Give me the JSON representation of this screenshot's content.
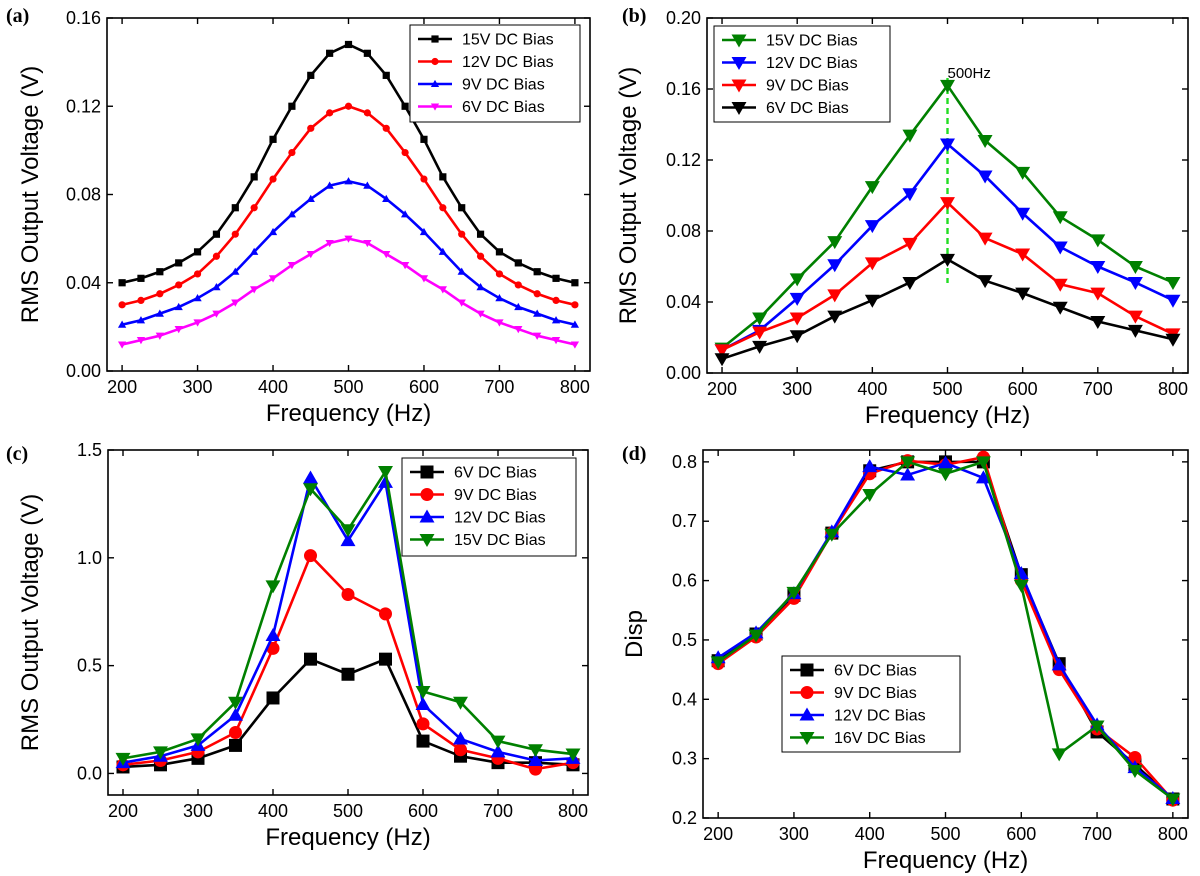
{
  "chart_data": [
    {
      "panel": "(a)",
      "type": "line",
      "xlabel": "Frequency (Hz)",
      "ylabel": "RMS Output Voltage (V)",
      "xlim": [
        180,
        820
      ],
      "ylim": [
        0,
        0.16
      ],
      "xticks": [
        200,
        300,
        400,
        500,
        600,
        700,
        800
      ],
      "yticks": [
        0,
        0.04,
        0.08,
        0.12,
        0.16
      ],
      "ytick_labels": [
        "0.00",
        "0.04",
        "0.08",
        "0.12",
        "0.16"
      ],
      "legend_position": "top-right",
      "x": [
        200,
        225,
        250,
        275,
        300,
        325,
        350,
        375,
        400,
        425,
        450,
        475,
        500,
        525,
        550,
        575,
        600,
        625,
        650,
        675,
        700,
        725,
        750,
        775,
        800
      ],
      "series": [
        {
          "name": "15V DC Bias",
          "color": "#000000",
          "marker": "square",
          "values": [
            0.04,
            0.042,
            0.045,
            0.049,
            0.054,
            0.062,
            0.074,
            0.088,
            0.105,
            0.12,
            0.134,
            0.144,
            0.148,
            0.144,
            0.134,
            0.12,
            0.105,
            0.088,
            0.074,
            0.062,
            0.054,
            0.049,
            0.045,
            0.042,
            0.04
          ]
        },
        {
          "name": "12V DC Bias",
          "color": "#ff0000",
          "marker": "circle",
          "values": [
            0.03,
            0.032,
            0.035,
            0.039,
            0.044,
            0.052,
            0.062,
            0.074,
            0.087,
            0.099,
            0.11,
            0.117,
            0.12,
            0.117,
            0.11,
            0.099,
            0.087,
            0.074,
            0.062,
            0.052,
            0.044,
            0.039,
            0.035,
            0.032,
            0.03
          ]
        },
        {
          "name": "9V DC Bias",
          "color": "#0000ff",
          "marker": "triangle-up",
          "values": [
            0.021,
            0.023,
            0.026,
            0.029,
            0.033,
            0.038,
            0.045,
            0.054,
            0.063,
            0.071,
            0.078,
            0.084,
            0.086,
            0.084,
            0.078,
            0.071,
            0.063,
            0.054,
            0.045,
            0.038,
            0.033,
            0.029,
            0.026,
            0.023,
            0.021
          ]
        },
        {
          "name": "6V DC Bias",
          "color": "#ff00ff",
          "marker": "triangle-down",
          "values": [
            0.012,
            0.014,
            0.016,
            0.019,
            0.022,
            0.026,
            0.031,
            0.037,
            0.042,
            0.048,
            0.053,
            0.058,
            0.06,
            0.058,
            0.053,
            0.048,
            0.042,
            0.037,
            0.031,
            0.026,
            0.022,
            0.019,
            0.016,
            0.014,
            0.012
          ]
        }
      ]
    },
    {
      "panel": "(b)",
      "type": "line",
      "xlabel": "Frequency (Hz)",
      "ylabel": "RMS Output Voltage (V)",
      "xlim": [
        180,
        820
      ],
      "ylim": [
        0,
        0.2
      ],
      "xticks": [
        200,
        300,
        400,
        500,
        600,
        700,
        800
      ],
      "yticks": [
        0,
        0.04,
        0.08,
        0.12,
        0.16,
        0.2
      ],
      "ytick_labels": [
        "0.00",
        "0.04",
        "0.08",
        "0.12",
        "0.16",
        "0.20"
      ],
      "legend_position": "top-left",
      "annotation": {
        "text": "500Hz",
        "x": 500
      },
      "x": [
        200,
        250,
        300,
        350,
        400,
        450,
        500,
        550,
        600,
        650,
        700,
        750,
        800
      ],
      "series": [
        {
          "name": "15V DC Bias",
          "color": "#008000",
          "marker": "triangle-down",
          "values": [
            0.014,
            0.031,
            0.053,
            0.074,
            0.105,
            0.134,
            0.162,
            0.131,
            0.113,
            0.088,
            0.075,
            0.06,
            0.051
          ]
        },
        {
          "name": "12V DC Bias",
          "color": "#0000ff",
          "marker": "triangle-down",
          "values": [
            0.013,
            0.024,
            0.042,
            0.061,
            0.083,
            0.101,
            0.129,
            0.111,
            0.09,
            0.071,
            0.06,
            0.051,
            0.041
          ]
        },
        {
          "name": "9V   DC Bias",
          "color": "#ff0000",
          "marker": "triangle-down",
          "values": [
            0.013,
            0.023,
            0.031,
            0.044,
            0.062,
            0.073,
            0.096,
            0.076,
            0.067,
            0.05,
            0.045,
            0.032,
            0.022
          ]
        },
        {
          "name": "6V    DC Bias",
          "color": "#000000",
          "marker": "triangle-down",
          "values": [
            0.008,
            0.015,
            0.021,
            0.032,
            0.041,
            0.051,
            0.064,
            0.052,
            0.045,
            0.037,
            0.029,
            0.024,
            0.019
          ]
        }
      ]
    },
    {
      "panel": "(c)",
      "type": "line",
      "xlabel": "Frequency (Hz)",
      "ylabel": "RMS Output Voltage (V)",
      "xlim": [
        180,
        820
      ],
      "ylim": [
        -0.1,
        1.5
      ],
      "xticks": [
        200,
        300,
        400,
        500,
        600,
        700,
        800
      ],
      "yticks": [
        0,
        0.5,
        1.0,
        1.5
      ],
      "ytick_labels": [
        "0.0",
        "0.5",
        "1.0",
        "1.5"
      ],
      "legend_position": "top-right",
      "x": [
        200,
        250,
        300,
        350,
        400,
        450,
        500,
        550,
        600,
        650,
        700,
        750,
        800
      ],
      "series": [
        {
          "name": "6V DC Bias",
          "color": "#000000",
          "marker": "square",
          "values": [
            0.03,
            0.04,
            0.07,
            0.13,
            0.35,
            0.53,
            0.46,
            0.53,
            0.15,
            0.08,
            0.05,
            0.05,
            0.04
          ]
        },
        {
          "name": "9V DC Bias",
          "color": "#ff0000",
          "marker": "circle",
          "values": [
            0.04,
            0.06,
            0.1,
            0.19,
            0.58,
            1.01,
            0.83,
            0.74,
            0.23,
            0.11,
            0.07,
            0.02,
            0.05
          ]
        },
        {
          "name": "12V DC Bias",
          "color": "#0000ff",
          "marker": "triangle-up",
          "values": [
            0.05,
            0.08,
            0.13,
            0.27,
            0.64,
            1.37,
            1.08,
            1.35,
            0.32,
            0.16,
            0.1,
            0.06,
            0.07
          ]
        },
        {
          "name": "15V DC Bias",
          "color": "#008000",
          "marker": "triangle-down",
          "values": [
            0.07,
            0.1,
            0.16,
            0.33,
            0.87,
            1.32,
            1.13,
            1.4,
            0.38,
            0.33,
            0.15,
            0.11,
            0.09
          ]
        }
      ]
    },
    {
      "panel": "(d)",
      "type": "line",
      "xlabel": "Frequency (Hz)",
      "ylabel": "Disp",
      "xlim": [
        180,
        820
      ],
      "ylim": [
        0.2,
        0.82
      ],
      "xticks": [
        200,
        300,
        400,
        500,
        600,
        700,
        800
      ],
      "yticks": [
        0.2,
        0.3,
        0.4,
        0.5,
        0.6,
        0.7,
        0.8
      ],
      "ytick_labels": [
        "0.2",
        "0.3",
        "0.4",
        "0.5",
        "0.6",
        "0.7",
        "0.8"
      ],
      "legend_position": "bottom-left",
      "x": [
        200,
        250,
        300,
        350,
        400,
        450,
        500,
        550,
        600,
        650,
        700,
        750,
        800
      ],
      "series": [
        {
          "name": "6V DC Bias",
          "color": "#000000",
          "marker": "square",
          "values": [
            0.465,
            0.51,
            0.575,
            0.68,
            0.785,
            0.8,
            0.8,
            0.8,
            0.61,
            0.46,
            0.345,
            0.29,
            0.232
          ]
        },
        {
          "name": "9V DC Bias",
          "color": "#ff0000",
          "marker": "circle",
          "values": [
            0.46,
            0.505,
            0.57,
            0.68,
            0.78,
            0.802,
            0.795,
            0.808,
            0.6,
            0.45,
            0.35,
            0.302,
            0.23
          ]
        },
        {
          "name": "12V DC Bias",
          "color": "#0000ff",
          "marker": "triangle-up",
          "values": [
            0.47,
            0.512,
            0.578,
            0.682,
            0.792,
            0.778,
            0.798,
            0.773,
            0.612,
            0.458,
            0.357,
            0.285,
            0.233
          ]
        },
        {
          "name": "16V DC Bias",
          "color": "#008000",
          "marker": "triangle-down",
          "values": [
            0.463,
            0.508,
            0.58,
            0.678,
            0.745,
            0.8,
            0.78,
            0.8,
            0.592,
            0.308,
            0.355,
            0.28,
            0.232
          ]
        }
      ]
    }
  ]
}
